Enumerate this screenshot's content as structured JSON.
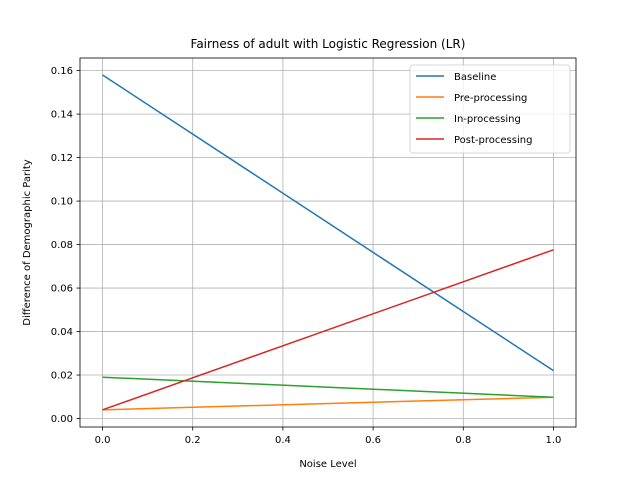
{
  "chart_data": {
    "type": "line",
    "title": "Fairness of adult with Logistic Regression (LR)",
    "xlabel": "Noise Level",
    "ylabel": "Difference of Demographic Parity",
    "x": [
      0.0,
      1.0
    ],
    "xlim": [
      -0.05,
      1.05
    ],
    "ylim": [
      -0.0039,
      0.1658
    ],
    "xticks": [
      "0.0",
      "0.2",
      "0.4",
      "0.6",
      "0.8",
      "1.0"
    ],
    "yticks": [
      "0.00",
      "0.02",
      "0.04",
      "0.06",
      "0.08",
      "0.10",
      "0.12",
      "0.14",
      "0.16"
    ],
    "grid": true,
    "legend_position": "top-right",
    "series": [
      {
        "name": "Baseline",
        "color": "#1f77b4",
        "values": [
          0.158,
          0.022
        ]
      },
      {
        "name": "Pre-processing",
        "color": "#ff7f0e",
        "values": [
          0.004,
          0.0098
        ]
      },
      {
        "name": "In-processing",
        "color": "#2ca02c",
        "values": [
          0.019,
          0.0098
        ]
      },
      {
        "name": "Post-processing",
        "color": "#d62728",
        "values": [
          0.004,
          0.0776
        ]
      }
    ]
  }
}
